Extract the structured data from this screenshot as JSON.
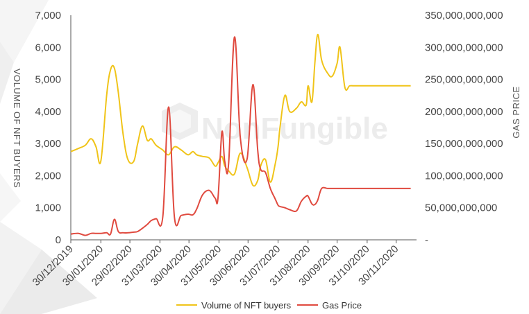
{
  "watermark": "NonFungible",
  "chart_data": {
    "type": "line",
    "x": [
      "2019-12-30",
      "2020-01-07",
      "2020-01-14",
      "2020-01-20",
      "2020-01-25",
      "2020-01-30",
      "2020-02-05",
      "2020-02-09",
      "2020-02-13",
      "2020-02-17",
      "2020-02-22",
      "2020-02-27",
      "2020-03-04",
      "2020-03-08",
      "2020-03-13",
      "2020-03-18",
      "2020-03-22",
      "2020-03-27",
      "2020-04-03",
      "2020-04-09",
      "2020-04-15",
      "2020-04-22",
      "2020-04-29",
      "2020-05-04",
      "2020-05-08",
      "2020-05-14",
      "2020-05-21",
      "2020-05-27",
      "2020-05-30",
      "2020-06-03",
      "2020-06-06",
      "2020-06-10",
      "2020-06-16",
      "2020-06-22",
      "2020-06-29",
      "2020-07-05",
      "2020-07-10",
      "2020-07-13",
      "2020-07-18",
      "2020-07-23",
      "2020-07-28",
      "2020-07-31",
      "2020-08-02",
      "2020-08-07",
      "2020-08-12",
      "2020-08-19",
      "2020-08-24",
      "2020-08-29",
      "2020-08-31",
      "2020-09-04",
      "2020-09-07",
      "2020-09-10",
      "2020-09-14",
      "2020-09-20",
      "2020-09-25",
      "2020-09-30",
      "2020-10-03",
      "2020-10-08",
      "2020-10-13",
      "2020-10-18",
      "2020-10-23",
      "2020-10-28",
      "2020-11-02",
      "2020-11-06",
      "2020-11-12",
      "2020-11-17",
      "2020-11-22",
      "2020-11-27",
      "2020-12-02",
      "2020-12-07",
      "2020-12-11",
      "2020-12-15"
    ],
    "x_range": [
      "2019-12-30",
      "2020-12-21"
    ],
    "x_ticks": [
      "30/12/2019",
      "30/01/2020",
      "29/02/2020",
      "31/03/2020",
      "30/04/2020",
      "31/05/2020",
      "30/06/2020",
      "31/07/2020",
      "31/08/2020",
      "30/09/2020",
      "31/10/2020",
      "30/11/2020"
    ],
    "x_tick_dates": [
      "2019-12-30",
      "2020-01-30",
      "2020-02-29",
      "2020-03-31",
      "2020-04-30",
      "2020-05-31",
      "2020-06-30",
      "2020-07-31",
      "2020-08-31",
      "2020-09-30",
      "2020-10-31",
      "2020-11-30"
    ],
    "series": [
      {
        "name": "Volume of NFT buyers",
        "axis": "left",
        "color": "#f0c419",
        "values": [
          2750,
          2850,
          2950,
          3150,
          2900,
          2450,
          4500,
          5300,
          5350,
          4600,
          3300,
          2500,
          2450,
          3000,
          3550,
          3100,
          3150,
          2950,
          2800,
          2650,
          2900,
          2800,
          2650,
          2750,
          2650,
          2600,
          2550,
          2300,
          2400,
          2600,
          2300,
          2150,
          2050,
          2700,
          2250,
          1700,
          1850,
          2300,
          2500,
          1800,
          2350,
          2900,
          3500,
          4500,
          4000,
          4100,
          4300,
          4200,
          4800,
          4300,
          5500,
          6400,
          5600,
          5200,
          5100,
          5500,
          6000,
          4750,
          4800,
          4800,
          4800,
          4800,
          4800,
          4800,
          4800,
          4800,
          4800,
          4800,
          4800,
          4800,
          4800,
          4800
        ],
        "values_note": ""
      },
      {
        "name": "Gas Price",
        "axis": "right",
        "color": "#e04a3f",
        "values": [
          9000000000,
          10000000000,
          7000000000,
          10000000000,
          10000000000,
          10000000000,
          11000000000,
          9000000000,
          32000000000,
          13000000000,
          11000000000,
          11000000000,
          12000000000,
          13000000000,
          18000000000,
          24000000000,
          30000000000,
          33000000000,
          36000000000,
          207000000000,
          35000000000,
          38000000000,
          40000000000,
          39000000000,
          48000000000,
          70000000000,
          77000000000,
          65000000000,
          65000000000,
          168000000000,
          122000000000,
          120000000000,
          316000000000,
          160000000000,
          126000000000,
          242000000000,
          140000000000,
          110000000000,
          105000000000,
          80000000000,
          64000000000,
          54000000000,
          52000000000,
          50000000000,
          47000000000,
          45000000000,
          60000000000,
          68000000000,
          68000000000,
          56000000000,
          55000000000,
          62000000000,
          80000000000,
          80000000000,
          80000000000,
          80000000000,
          80000000000,
          80000000000,
          80000000000,
          80000000000,
          80000000000,
          80000000000,
          80000000000,
          80000000000,
          80000000000,
          80000000000,
          80000000000,
          80000000000,
          80000000000,
          80000000000,
          80000000000,
          80000000000
        ]
      }
    ],
    "y_left": {
      "label": "VOLUME OF NFT BUYERS",
      "range": [
        0,
        7000
      ],
      "ticks": [
        "0",
        "1,000",
        "2,000",
        "3,000",
        "4,000",
        "5,000",
        "6,000",
        "7,000"
      ]
    },
    "y_right": {
      "label": "GAS PRICE",
      "range": [
        0,
        350000000000
      ],
      "ticks": [
        "-",
        "50,000,000,000",
        "100,000,000,000",
        "150,000,000,000",
        "200,000,000,000",
        "250,000,000,000",
        "300,000,000,000",
        "350,000,000,000"
      ]
    },
    "grid": false,
    "legend_position": "bottom"
  }
}
